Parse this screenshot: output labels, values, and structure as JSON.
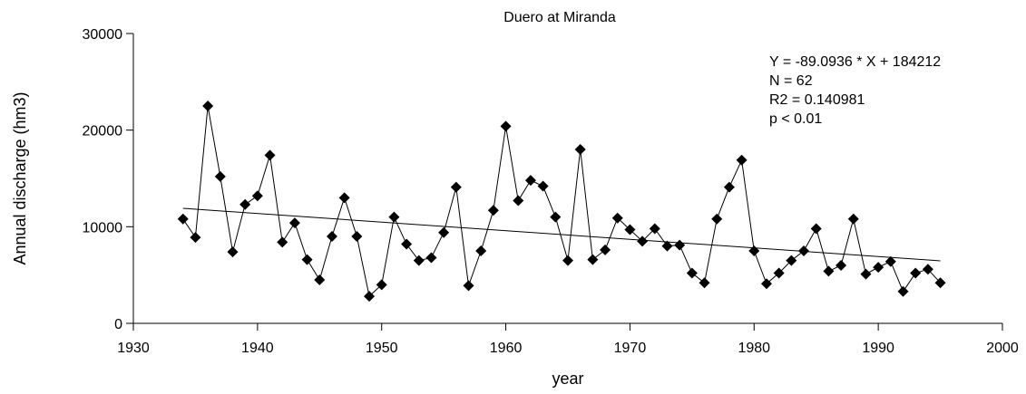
{
  "chart_data": {
    "type": "line",
    "title": "Duero at Miranda",
    "x_label": "year",
    "y_label": "Annual discharge (hm3)",
    "annotations": [
      "Y = -89.0936 * X + 184212",
      "N = 62",
      "R2 = 0.140981",
      "p < 0.01"
    ],
    "x": [
      1934,
      1935,
      1936,
      1937,
      1938,
      1939,
      1940,
      1941,
      1942,
      1943,
      1944,
      1945,
      1946,
      1947,
      1948,
      1949,
      1950,
      1951,
      1952,
      1953,
      1954,
      1955,
      1956,
      1957,
      1958,
      1959,
      1960,
      1961,
      1962,
      1963,
      1964,
      1965,
      1966,
      1967,
      1968,
      1969,
      1970,
      1971,
      1972,
      1973,
      1974,
      1975,
      1976,
      1977,
      1978,
      1979,
      1980,
      1981,
      1982,
      1983,
      1984,
      1985,
      1986,
      1987,
      1988,
      1989,
      1990,
      1991,
      1992,
      1993,
      1994,
      1995
    ],
    "series": [
      {
        "name": "Annual discharge",
        "color": "#000000",
        "values": [
          10800,
          8900,
          22500,
          15200,
          7400,
          12300,
          13200,
          17400,
          8400,
          10400,
          6600,
          4500,
          9000,
          13000,
          9000,
          2800,
          4000,
          11000,
          8200,
          6500,
          6800,
          9400,
          14100,
          3900,
          7500,
          11700,
          20400,
          12700,
          14800,
          14200,
          11000,
          6500,
          18000,
          6600,
          7600,
          10900,
          9700,
          8500,
          9800,
          8000,
          8100,
          5200,
          4200,
          10800,
          14100,
          16900,
          7500,
          4100,
          5200,
          6500,
          7500,
          9800,
          5400,
          6000,
          10800,
          5100,
          5800,
          6400,
          3300,
          5200,
          5600,
          4200
        ]
      }
    ],
    "trend": {
      "x": [
        1934,
        1995
      ],
      "values": [
        11906,
        6470
      ]
    },
    "xlim": [
      1930,
      2000
    ],
    "xticks": [
      1930,
      1940,
      1950,
      1960,
      1970,
      1980,
      1990,
      2000
    ],
    "ylim": [
      0,
      30000
    ],
    "yticks": [
      0,
      10000,
      20000,
      30000
    ]
  }
}
